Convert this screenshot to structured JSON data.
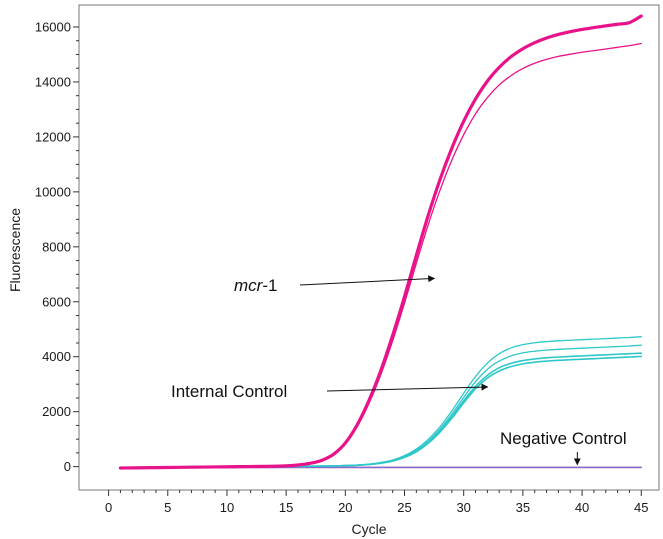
{
  "chart_data": {
    "type": "line",
    "title": "",
    "xlabel": "Cycle",
    "ylabel": "Fluorescence",
    "xlim": [
      -2.5,
      46.5
    ],
    "ylim": [
      -850,
      16800
    ],
    "x_ticks": [
      0,
      5,
      10,
      15,
      20,
      25,
      30,
      35,
      40,
      45
    ],
    "y_ticks": [
      0,
      2000,
      4000,
      6000,
      8000,
      10000,
      12000,
      14000,
      16000
    ],
    "x_tick_labels": [
      "0",
      "5",
      "10",
      "15",
      "20",
      "25",
      "30",
      "35",
      "40",
      "45"
    ],
    "y_tick_labels": [
      "0",
      "2000",
      "4000",
      "6000",
      "8000",
      "10000",
      "12000",
      "14000",
      "16000"
    ],
    "grid": false,
    "legend": "none",
    "x": [
      1,
      3,
      5,
      7,
      9,
      11,
      13,
      15,
      16,
      17,
      18,
      19,
      20,
      21,
      22,
      23,
      24,
      25,
      26,
      27,
      28,
      29,
      30,
      31,
      32,
      33,
      34,
      35,
      36,
      37,
      38,
      39,
      40,
      41,
      42,
      43,
      44,
      45
    ],
    "series": [
      {
        "group": "mcr",
        "color": "#e8128a",
        "width": 3.2,
        "values": [
          -50,
          -40,
          -30,
          -20,
          -10,
          0,
          10,
          30,
          60,
          120,
          230,
          450,
          860,
          1520,
          2410,
          3500,
          4780,
          6190,
          7690,
          9140,
          10450,
          11590,
          12570,
          13380,
          14030,
          14530,
          14920,
          15210,
          15430,
          15600,
          15730,
          15830,
          15910,
          15980,
          16040,
          16100,
          16160,
          16400
        ]
      },
      {
        "group": "mcr",
        "color": "#e8128a",
        "width": 1.3,
        "values": [
          -50,
          -40,
          -30,
          -20,
          -10,
          0,
          10,
          30,
          60,
          115,
          220,
          430,
          820,
          1450,
          2300,
          3350,
          4580,
          5950,
          7400,
          8800,
          10060,
          11160,
          12080,
          12840,
          13430,
          13890,
          14230,
          14490,
          14680,
          14820,
          14930,
          15010,
          15080,
          15140,
          15200,
          15260,
          15320,
          15400
        ]
      },
      {
        "group": "ic",
        "color": "#2ec7c9",
        "width": 1.3,
        "values": [
          -30,
          -20,
          -10,
          0,
          10,
          10,
          10,
          10,
          10,
          15,
          20,
          30,
          40,
          60,
          90,
          150,
          240,
          400,
          640,
          990,
          1450,
          2030,
          2670,
          3280,
          3770,
          4110,
          4320,
          4440,
          4510,
          4550,
          4580,
          4600,
          4620,
          4640,
          4660,
          4680,
          4700,
          4730
        ]
      },
      {
        "group": "ic",
        "color": "#2ec7c9",
        "width": 1.3,
        "values": [
          -30,
          -20,
          -10,
          0,
          10,
          10,
          10,
          10,
          10,
          15,
          20,
          30,
          40,
          55,
          85,
          140,
          220,
          370,
          590,
          920,
          1360,
          1910,
          2520,
          3090,
          3540,
          3840,
          4030,
          4140,
          4200,
          4240,
          4270,
          4290,
          4310,
          4330,
          4350,
          4370,
          4390,
          4420
        ]
      },
      {
        "group": "ic",
        "color": "#2ec7c9",
        "width": 1.6,
        "values": [
          -30,
          -20,
          -10,
          0,
          10,
          10,
          10,
          10,
          10,
          15,
          20,
          28,
          38,
          52,
          80,
          130,
          210,
          350,
          560,
          880,
          1300,
          1820,
          2400,
          2920,
          3320,
          3600,
          3760,
          3860,
          3920,
          3960,
          3990,
          4010,
          4030,
          4050,
          4070,
          4090,
          4110,
          4130
        ]
      },
      {
        "group": "ic",
        "color": "#2ec7c9",
        "width": 1.6,
        "values": [
          -30,
          -20,
          -10,
          0,
          10,
          10,
          10,
          10,
          10,
          15,
          20,
          28,
          36,
          50,
          78,
          125,
          200,
          335,
          540,
          850,
          1260,
          1760,
          2320,
          2830,
          3220,
          3480,
          3640,
          3740,
          3800,
          3840,
          3870,
          3890,
          3910,
          3930,
          3950,
          3970,
          3990,
          4010
        ]
      },
      {
        "group": "neg",
        "color": "#e8128a",
        "width": 1.4,
        "values": [
          -30,
          -30,
          -30,
          -30,
          -30,
          -30,
          -30,
          -30,
          -30,
          -30,
          -30,
          -30,
          -30,
          -30,
          -30,
          -30,
          -30,
          -30,
          -30,
          -30,
          -30,
          -30,
          -30,
          -30,
          -30,
          -30,
          -30,
          -30,
          -30,
          -30,
          -30,
          -30,
          -30,
          -30,
          -30,
          -30,
          -30,
          -30
        ]
      },
      {
        "group": "neg",
        "color": "#7a6fd0",
        "width": 1.4,
        "values": [
          -45,
          -45,
          -45,
          -40,
          -40,
          -35,
          -35,
          -30,
          -30,
          -30,
          -30,
          -30,
          -30,
          -30,
          -30,
          -30,
          -30,
          -30,
          -30,
          -30,
          -30,
          -30,
          -30,
          -30,
          -30,
          -30,
          -30,
          -30,
          -30,
          -30,
          -30,
          -30,
          -30,
          -30,
          -30,
          -30,
          -30,
          -30
        ]
      }
    ],
    "annotations": [
      {
        "name": "annotation-mcr1",
        "prefix": "mcr",
        "suffix": "-1",
        "text": "mcr-1",
        "target": [
          27.7,
          6850
        ]
      },
      {
        "name": "annotation-internal-control",
        "prefix": "",
        "suffix": "",
        "text": "Internal Control",
        "target": [
          32.2,
          2900
        ]
      },
      {
        "name": "annotation-negative-control",
        "prefix": "",
        "suffix": "",
        "text": "Negative Control",
        "target": [
          39.6,
          0
        ]
      }
    ]
  }
}
